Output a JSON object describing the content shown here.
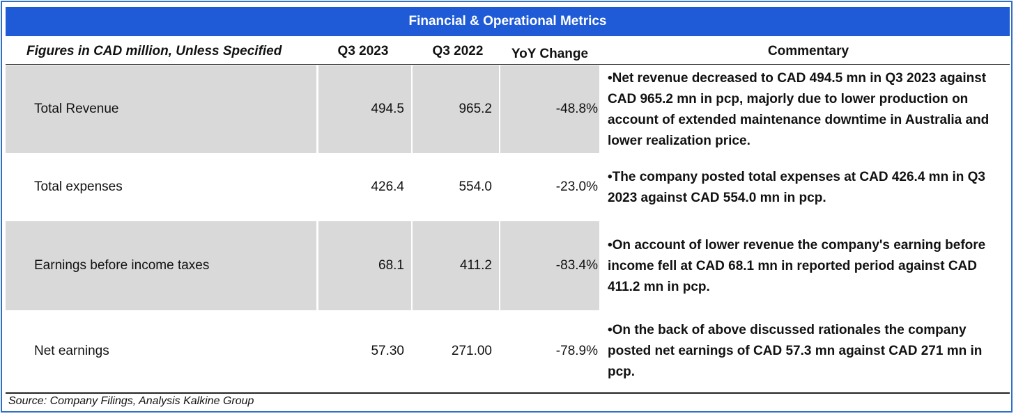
{
  "title": "Financial & Operational Metrics",
  "headers": {
    "label": "Figures in CAD million, Unless Specified",
    "q3_2023": "Q3 2023",
    "q3_2022": "Q3 2022",
    "yoy": "YoY Change",
    "commentary": "Commentary"
  },
  "rows": [
    {
      "label": "Total Revenue",
      "q3_2023": "494.5",
      "q3_2022": "965.2",
      "yoy": "-48.8%",
      "commentary": "•Net revenue decreased to CAD 494.5 mn in Q3 2023 against CAD 965.2 mn in pcp, majorly due to lower production on account of extended maintenance downtime in Australia and lower realization price."
    },
    {
      "label": "Total expenses",
      "q3_2023": "426.4",
      "q3_2022": "554.0",
      "yoy": "-23.0%",
      "commentary": "•The company posted total expenses at CAD 426.4 mn in Q3 2023 against CAD 554.0 mn in pcp."
    },
    {
      "label": "Earnings before income taxes",
      "q3_2023": "68.1",
      "q3_2022": "411.2",
      "yoy": "-83.4%",
      "commentary": "•On account of lower revenue the company's earning before income fell at CAD 68.1 mn in reported period against CAD 411.2 mn in pcp."
    },
    {
      "label": "Net earnings",
      "q3_2023": "57.30",
      "q3_2022": "271.00",
      "yoy": "-78.9%",
      "commentary": "•On the back of above discussed rationales the company posted net earnings of CAD 57.3 mn against CAD 271 mn in pcp."
    }
  ],
  "source": "Source: Company Filings, Analysis Kalkine Group",
  "colors": {
    "title_bg": "#1f5bd6",
    "border": "#2f6fc9",
    "shade": "#d9d9d9"
  }
}
